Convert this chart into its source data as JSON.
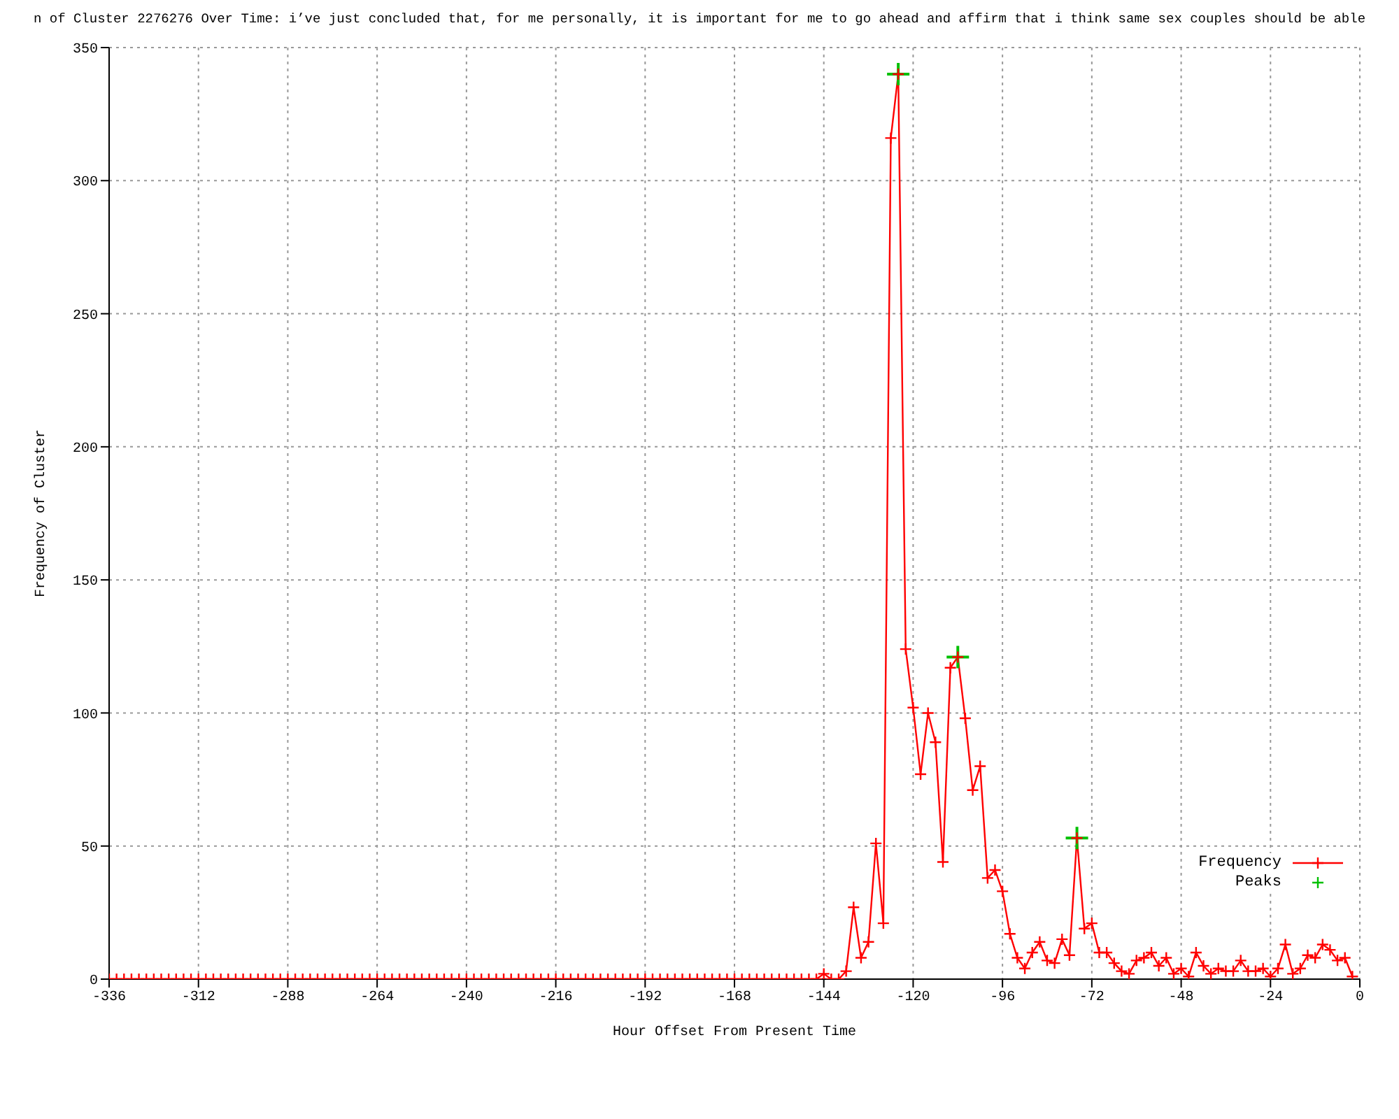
{
  "chart_data": {
    "type": "line",
    "title": "n of Cluster 2276276 Over Time: i’ve just concluded that, for me personally, it is important for me to go ahead and affirm that i think same sex couples should be able",
    "xlabel": "Hour Offset From Present Time",
    "ylabel": "Frequency of Cluster",
    "x": [
      -336,
      -334,
      -332,
      -330,
      -328,
      -326,
      -324,
      -322,
      -320,
      -318,
      -316,
      -314,
      -312,
      -310,
      -308,
      -306,
      -304,
      -302,
      -300,
      -298,
      -296,
      -294,
      -292,
      -290,
      -288,
      -286,
      -284,
      -282,
      -280,
      -278,
      -276,
      -274,
      -272,
      -270,
      -268,
      -266,
      -264,
      -262,
      -260,
      -258,
      -256,
      -254,
      -252,
      -250,
      -248,
      -246,
      -244,
      -242,
      -240,
      -238,
      -236,
      -234,
      -232,
      -230,
      -228,
      -226,
      -224,
      -222,
      -220,
      -218,
      -216,
      -214,
      -212,
      -210,
      -208,
      -206,
      -204,
      -202,
      -200,
      -198,
      -196,
      -194,
      -192,
      -190,
      -188,
      -186,
      -184,
      -182,
      -180,
      -178,
      -176,
      -174,
      -172,
      -170,
      -168,
      -166,
      -164,
      -162,
      -160,
      -158,
      -156,
      -154,
      -152,
      -150,
      -148,
      -146,
      -144,
      -142,
      -140,
      -138,
      -136,
      -134,
      -132,
      -130,
      -128,
      -126,
      -124,
      -122,
      -120,
      -118,
      -116,
      -114,
      -112,
      -110,
      -108,
      -106,
      -104,
      -102,
      -100,
      -98,
      -96,
      -94,
      -92,
      -90,
      -88,
      -86,
      -84,
      -82,
      -80,
      -78,
      -76,
      -74,
      -72,
      -70,
      -68,
      -66,
      -64,
      -62,
      -60,
      -58,
      -56,
      -54,
      -52,
      -50,
      -48,
      -46,
      -44,
      -42,
      -40,
      -38,
      -36,
      -34,
      -32,
      -30,
      -28,
      -26,
      -24,
      -22,
      -20,
      -18,
      -16,
      -14,
      -12,
      -10,
      -8,
      -6,
      -4,
      -2
    ],
    "series": [
      {
        "name": "Frequency",
        "color": "#ff0000",
        "marker": "cross",
        "values": [
          0,
          0,
          0,
          0,
          0,
          0,
          0,
          0,
          0,
          0,
          0,
          0,
          0,
          0,
          0,
          0,
          0,
          0,
          0,
          0,
          0,
          0,
          0,
          0,
          0,
          0,
          0,
          0,
          0,
          0,
          0,
          0,
          0,
          0,
          0,
          0,
          0,
          0,
          0,
          0,
          0,
          0,
          0,
          0,
          0,
          0,
          0,
          0,
          0,
          0,
          0,
          0,
          0,
          0,
          0,
          0,
          0,
          0,
          0,
          0,
          0,
          0,
          0,
          0,
          0,
          0,
          0,
          0,
          0,
          0,
          0,
          0,
          0,
          0,
          0,
          0,
          0,
          0,
          0,
          0,
          0,
          0,
          0,
          0,
          0,
          0,
          0,
          0,
          0,
          0,
          0,
          0,
          0,
          0,
          0,
          0,
          2,
          0,
          0,
          3,
          27,
          8,
          14,
          51,
          21,
          316,
          340,
          124,
          102,
          77,
          100,
          89,
          44,
          117,
          121,
          98,
          71,
          80,
          38,
          41,
          33,
          17,
          8,
          4,
          10,
          14,
          7,
          6,
          15,
          9,
          53,
          19,
          21,
          10,
          10,
          6,
          3,
          2,
          7,
          8,
          10,
          5,
          8,
          2,
          4,
          1,
          10,
          5,
          2,
          4,
          3,
          3,
          7,
          3,
          3,
          4,
          1,
          4,
          13,
          2,
          4,
          9,
          8,
          13,
          11,
          7,
          8,
          1
        ]
      },
      {
        "name": "Peaks",
        "type": "scatter",
        "color": "#00c000",
        "marker": "cross",
        "x": [
          -124,
          -108,
          -76
        ],
        "values": [
          340,
          121,
          53
        ]
      }
    ],
    "xlim": [
      -336,
      0
    ],
    "xticks": [
      -336,
      -312,
      -288,
      -264,
      -240,
      -216,
      -192,
      -168,
      -144,
      -120,
      -96,
      -72,
      -48,
      -24,
      0
    ],
    "ylim": [
      0,
      350
    ],
    "yticks": [
      0,
      50,
      100,
      150,
      200,
      250,
      300,
      350
    ],
    "grid": true,
    "legend": "bottom right"
  }
}
